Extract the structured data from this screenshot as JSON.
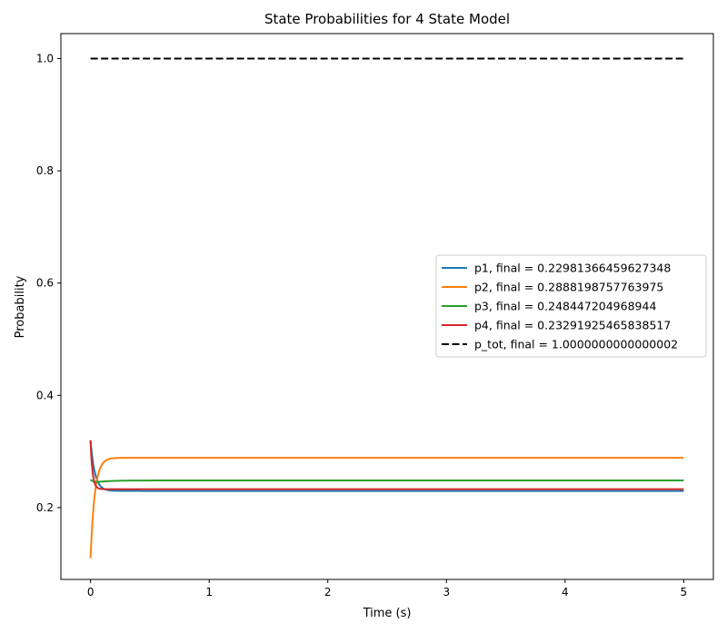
{
  "chart_data": {
    "type": "line",
    "title": "State Probabilities for 4 State Model",
    "xlabel": "Time (s)",
    "ylabel": "Probability",
    "xlim": [
      -0.25,
      5.25
    ],
    "ylim": [
      0.0722,
      1.0444
    ],
    "xticks": [
      0,
      1,
      2,
      3,
      4,
      5
    ],
    "yticks": [
      0.2,
      0.4,
      0.6,
      0.8,
      1.0
    ],
    "xtick_labels": [
      "0",
      "1",
      "2",
      "3",
      "4",
      "5"
    ],
    "ytick_labels": [
      "0.2",
      "0.4",
      "0.6",
      "0.8",
      "1.0"
    ],
    "grid": false,
    "legend_position": "center-right",
    "series": [
      {
        "name": "p1, final = 0.22981366459627348",
        "color": "#1f77b4",
        "dash": "solid",
        "initial": 0.32,
        "final": 0.22981366459627348,
        "rate": 28
      },
      {
        "name": "p2, final = 0.2888198757763975",
        "color": "#ff7f0e",
        "dash": "solid",
        "initial": 0.11,
        "final": 0.2888198757763975,
        "rate": 28
      },
      {
        "name": "p3, final = 0.248447204968944",
        "color": "#2ca02c",
        "dash": "solid",
        "initial": 0.25,
        "final": 0.248447204968944,
        "rate": 10,
        "dip": 0.245
      },
      {
        "name": "p4, final = 0.23291925465838517",
        "color": "#d62728",
        "dash": "solid",
        "initial": 0.32,
        "final": 0.23291925465838517,
        "rate": 60
      },
      {
        "name": "p_tot, final = 1.0000000000000002",
        "color": "#000000",
        "dash": "dashed",
        "initial": 1.0,
        "final": 1.0000000000000002,
        "rate": 1
      }
    ],
    "t_start": 0,
    "t_end": 5
  }
}
